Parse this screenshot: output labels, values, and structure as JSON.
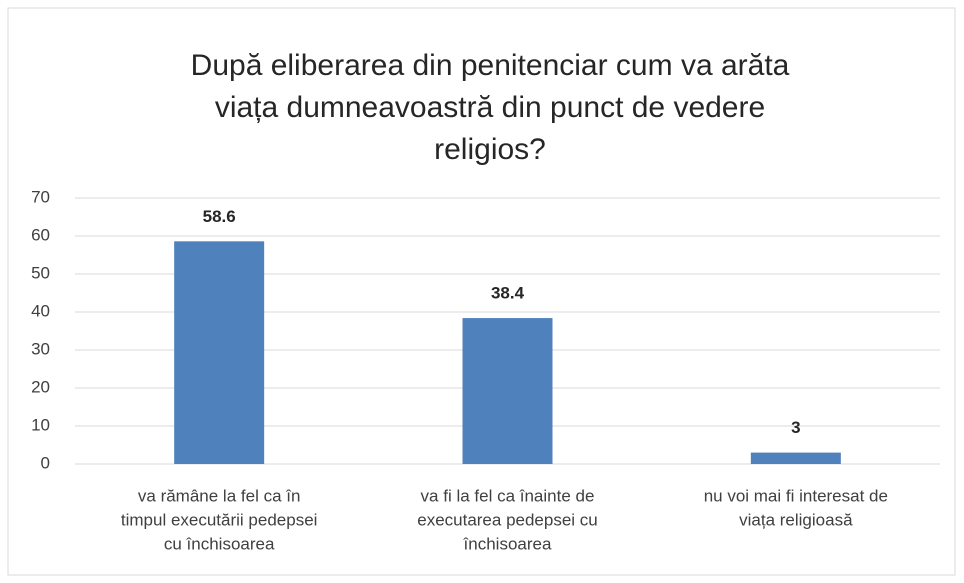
{
  "chart_data": {
    "type": "bar",
    "title": [
      "După eliberarea din penitenciar cum va arăta",
      "viața dumneavoastră din punct de vedere",
      "religios?"
    ],
    "categories": [
      [
        "va rămâne la fel ca în",
        "timpul executării pedepsei",
        "cu închisoarea"
      ],
      [
        "va fi la fel ca înainte de",
        "executarea pedepsei cu",
        "închisoarea"
      ],
      [
        "nu voi mai fi interesat de",
        "viața religioasă"
      ]
    ],
    "values": [
      58.6,
      38.4,
      3
    ],
    "color": "#4f81bd",
    "ylim": [
      0,
      70
    ],
    "yticks": [
      0,
      10,
      20,
      30,
      40,
      50,
      60,
      70
    ],
    "grid": true
  }
}
